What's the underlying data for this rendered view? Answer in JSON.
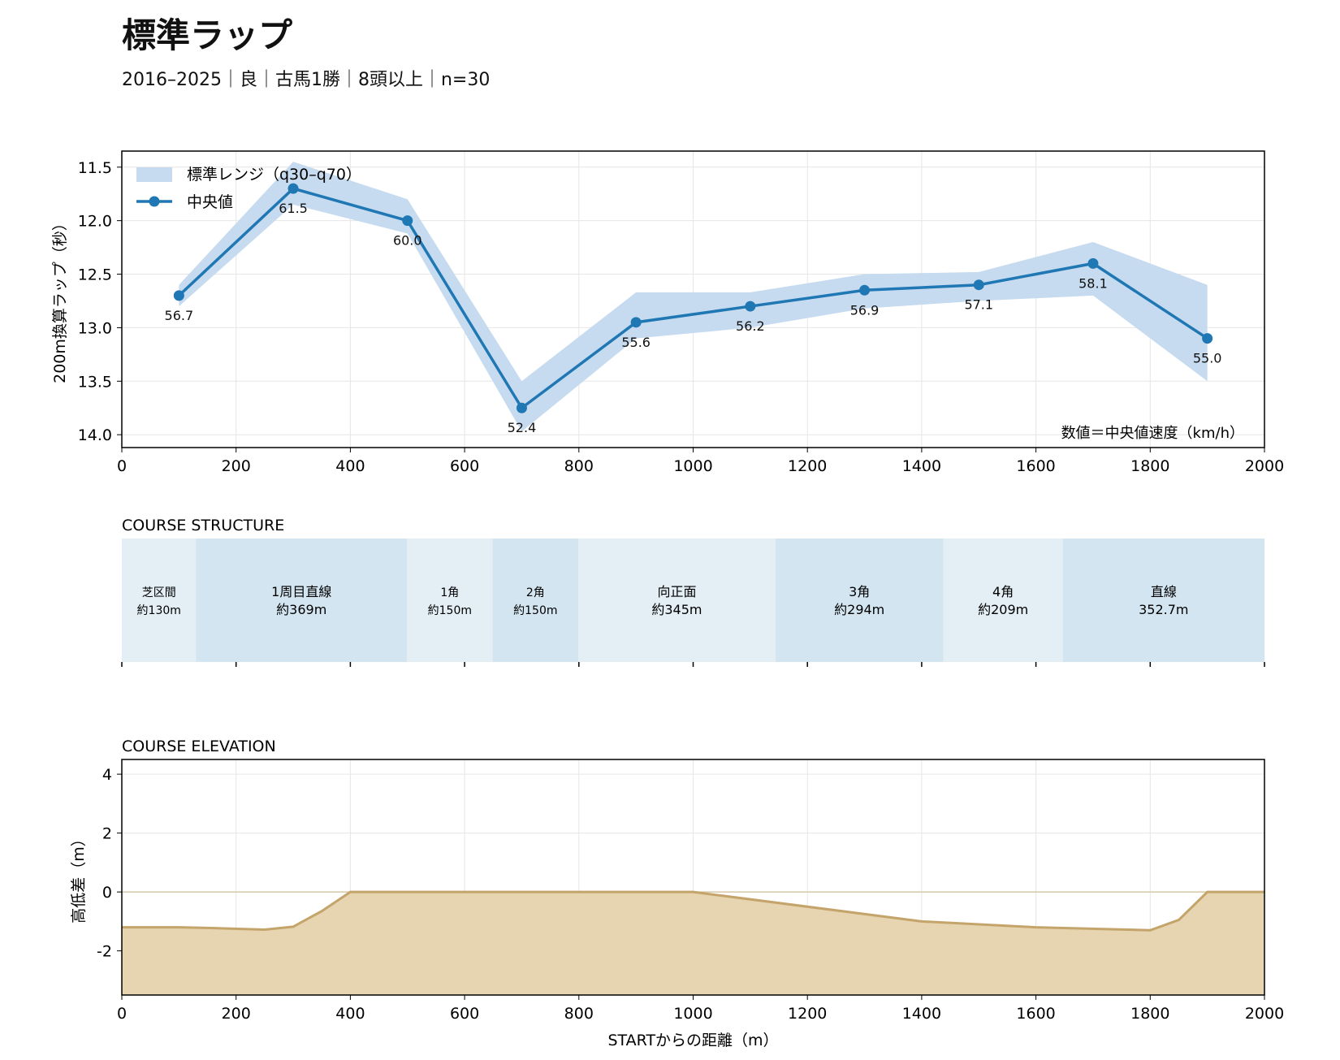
{
  "header": {
    "title": "標準ラップ",
    "subtitle": "2016–2025｜良｜古馬1勝｜8頭以上｜n=30"
  },
  "colors": {
    "median_line": "#1f77b4",
    "band_fill": "#c6dbef",
    "segment_light": "#e3eef5",
    "segment_dark": "#d3e5f0",
    "elevation_fill": "#e6d5b0",
    "elevation_line": "#c4a46b",
    "grid": "#e6e6e6"
  },
  "chart_data": [
    {
      "type": "line",
      "panel": "lap",
      "xlim": [
        0,
        2000
      ],
      "ylim": [
        14.12,
        11.35
      ],
      "y_inverted": true,
      "xticks": [
        0,
        200,
        400,
        600,
        800,
        1000,
        1200,
        1400,
        1600,
        1800,
        2000
      ],
      "yticks": [
        11.5,
        12.0,
        12.5,
        13.0,
        13.5,
        14.0
      ],
      "ylabel": "200m換算ラップ（秒）",
      "grid": true,
      "legend_position": "top-left",
      "annotation": "数値＝中央値速度（km/h）",
      "band": {
        "name": "標準レンジ（q30–q70）",
        "x": [
          100,
          300,
          500,
          700,
          900,
          1100,
          1300,
          1500,
          1700,
          1900
        ],
        "lower": [
          12.6,
          11.45,
          11.8,
          13.5,
          12.67,
          12.67,
          12.5,
          12.48,
          12.2,
          12.6
        ],
        "upper": [
          12.8,
          11.85,
          12.12,
          13.97,
          13.1,
          13.0,
          12.82,
          12.75,
          12.7,
          13.5
        ]
      },
      "series": [
        {
          "name": "中央値",
          "x": [
            100,
            300,
            500,
            700,
            900,
            1100,
            1300,
            1500,
            1700,
            1900
          ],
          "y": [
            12.7,
            11.7,
            12.0,
            13.75,
            12.95,
            12.8,
            12.65,
            12.6,
            12.4,
            13.1
          ],
          "labels": [
            "56.7",
            "61.5",
            "60.0",
            "52.4",
            "55.6",
            "56.2",
            "56.9",
            "57.1",
            "58.1",
            "55.0"
          ]
        }
      ]
    },
    {
      "type": "bar",
      "panel": "course_structure",
      "title": "COURSE STRUCTURE",
      "xlim": [
        0,
        2000
      ],
      "xticks": [
        0,
        200,
        400,
        600,
        800,
        1000,
        1200,
        1400,
        1600,
        1800,
        2000
      ],
      "segments": [
        {
          "start": 0,
          "end": 130,
          "name": "芝区間",
          "length": "約130m",
          "shade": "light"
        },
        {
          "start": 130,
          "end": 499,
          "name": "1周目直線",
          "length": "約369m",
          "shade": "dark"
        },
        {
          "start": 499,
          "end": 649,
          "name": "1角",
          "length": "約150m",
          "shade": "light"
        },
        {
          "start": 649,
          "end": 799,
          "name": "2角",
          "length": "約150m",
          "shade": "dark"
        },
        {
          "start": 799,
          "end": 1144,
          "name": "向正面",
          "length": "約345m",
          "shade": "light"
        },
        {
          "start": 1144,
          "end": 1438,
          "name": "3角",
          "length": "約294m",
          "shade": "dark"
        },
        {
          "start": 1438,
          "end": 1647,
          "name": "4角",
          "length": "約209m",
          "shade": "light"
        },
        {
          "start": 1647,
          "end": 2000,
          "name": "直線",
          "length": "352.7m",
          "shade": "dark"
        }
      ]
    },
    {
      "type": "area",
      "panel": "elevation",
      "title": "COURSE ELEVATION",
      "xlabel": "STARTからの距離（m）",
      "ylabel": "高低差（m）",
      "xlim": [
        0,
        2000
      ],
      "ylim": [
        -3.5,
        4.5
      ],
      "xticks": [
        0,
        200,
        400,
        600,
        800,
        1000,
        1200,
        1400,
        1600,
        1800,
        2000
      ],
      "yticks": [
        4,
        2,
        0,
        -2
      ],
      "grid": true,
      "x": [
        0,
        100,
        150,
        250,
        300,
        350,
        400,
        1000,
        1400,
        1600,
        1800,
        1850,
        1900,
        2000
      ],
      "y": [
        -1.2,
        -1.2,
        -1.22,
        -1.28,
        -1.18,
        -0.65,
        0.0,
        0.0,
        -1.0,
        -1.2,
        -1.3,
        -0.95,
        0.0,
        0.0
      ]
    }
  ]
}
